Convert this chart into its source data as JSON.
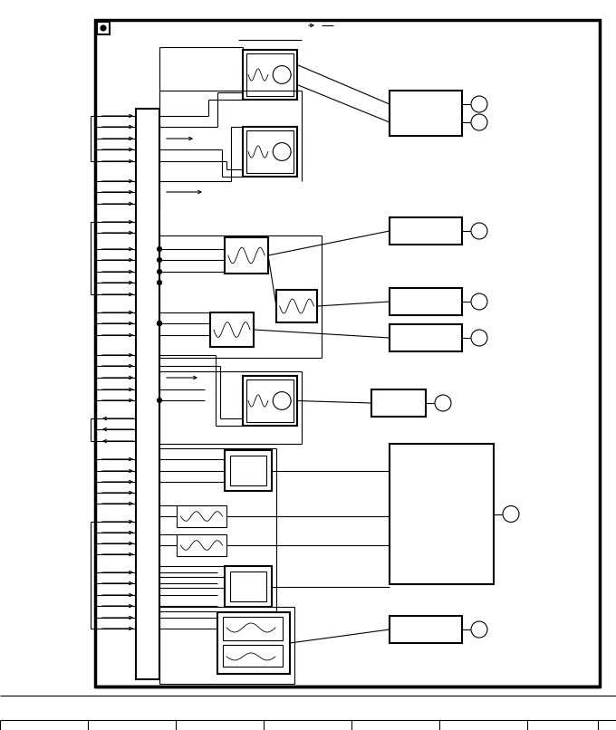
{
  "bg_color": "#ffffff",
  "figsize": [
    6.8,
    8.06
  ],
  "dpi": 100,
  "border_thick": 2.5,
  "border_med": 1.5,
  "border_thin": 0.8
}
